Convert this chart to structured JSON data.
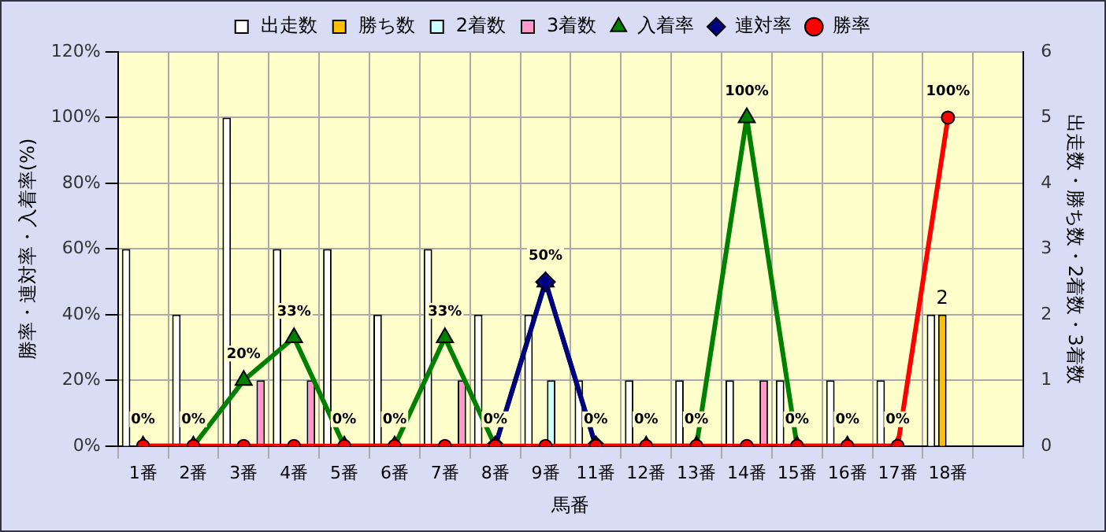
{
  "chart_data": {
    "type": "bar",
    "xlabel": "馬番",
    "ylabel": "勝率・連対率・入着率(%)",
    "y2label": "出走数・勝ち数・2着数・3着数",
    "categories": [
      "1番",
      "2番",
      "3番",
      "4番",
      "5番",
      "6番",
      "7番",
      "8番",
      "9番",
      "11番",
      "12番",
      "13番",
      "14番",
      "15番",
      "16番",
      "17番",
      "18番",
      null
    ],
    "series": [
      {
        "name": "出走数",
        "axis": "y2",
        "color": "#ffffff",
        "values": [
          3,
          2,
          5,
          3,
          3,
          2,
          3,
          2,
          2,
          1,
          1,
          1,
          1,
          1,
          1,
          1,
          2,
          null
        ]
      },
      {
        "name": "勝ち数",
        "axis": "y2",
        "color": "#ffc000",
        "values": [
          0,
          0,
          0,
          0,
          0,
          0,
          0,
          0,
          0,
          0,
          0,
          0,
          0,
          0,
          0,
          0,
          2,
          null
        ],
        "value_labels": [
          null,
          null,
          null,
          null,
          null,
          null,
          null,
          null,
          null,
          null,
          null,
          null,
          null,
          null,
          null,
          null,
          "2",
          null
        ]
      },
      {
        "name": "2着数",
        "axis": "y2",
        "color": "#ccffff",
        "values": [
          0,
          0,
          0,
          0,
          0,
          0,
          0,
          0,
          1,
          0,
          0,
          0,
          0,
          0,
          0,
          0,
          0,
          null
        ]
      },
      {
        "name": "3着数",
        "axis": "y2",
        "color": "#ff99cc",
        "values": [
          0,
          0,
          1,
          1,
          0,
          0,
          1,
          0,
          0,
          0,
          0,
          0,
          1,
          0,
          0,
          0,
          0,
          null
        ]
      },
      {
        "name": "入着率",
        "type": "line",
        "marker": "triangle",
        "color": "#008000",
        "values": [
          0,
          0,
          20,
          33,
          0,
          0,
          33,
          0,
          50,
          0,
          0,
          0,
          100,
          0,
          0,
          0,
          null,
          null
        ],
        "value_labels": [
          "0%",
          "0%",
          "20%",
          "33%",
          "0%",
          "0%",
          "33%",
          "0%",
          "50%",
          "0%",
          "0%",
          "0%",
          "100%",
          "0%",
          "0%",
          "0%",
          null,
          null
        ]
      },
      {
        "name": "連対率",
        "type": "line",
        "marker": "diamond",
        "color": "#000080",
        "values": [
          null,
          null,
          null,
          null,
          null,
          null,
          null,
          0,
          50,
          0,
          null,
          null,
          null,
          null,
          null,
          null,
          null,
          null
        ]
      },
      {
        "name": "勝率",
        "type": "line",
        "marker": "circle",
        "color": "#ff0000",
        "values": [
          0,
          0,
          0,
          0,
          0,
          0,
          0,
          0,
          0,
          0,
          0,
          0,
          0,
          0,
          0,
          0,
          100,
          null
        ],
        "value_labels": [
          null,
          null,
          null,
          null,
          null,
          null,
          null,
          null,
          null,
          null,
          null,
          null,
          null,
          null,
          null,
          null,
          "100%",
          null
        ]
      }
    ],
    "ylim": [
      0,
      120
    ],
    "yticks": [
      {
        "value": 0,
        "label": "0%"
      },
      {
        "value": 20,
        "label": "20%"
      },
      {
        "value": 40,
        "label": "40%"
      },
      {
        "value": 60,
        "label": "60%"
      },
      {
        "value": 80,
        "label": "80%"
      },
      {
        "value": 100,
        "label": "100%"
      },
      {
        "value": 120,
        "label": "120%"
      }
    ],
    "y2lim": [
      0,
      6
    ],
    "y2ticks": [
      0,
      1,
      2,
      3,
      4,
      5,
      6
    ],
    "grid": true,
    "legend": "top"
  }
}
